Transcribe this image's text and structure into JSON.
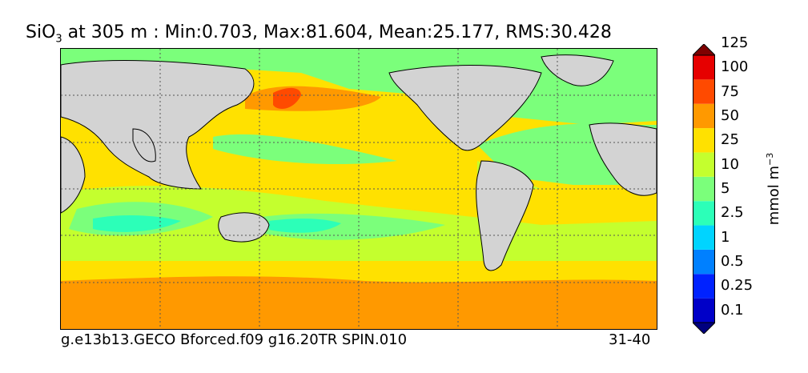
{
  "title": {
    "var_main": "SiO",
    "var_sub": "3",
    "rest": " at 305 m : Min:0.703, Max:81.604, Mean:25.177, RMS:30.428"
  },
  "footer": {
    "left": "g.e13b13.GECO Bforced.f09 g16.20TR SPIN.010",
    "right": "31-40"
  },
  "colorbar": {
    "unit_main": "mmol m",
    "unit_sup": "−3",
    "levels": [
      "0.1",
      "0.25",
      "0.5",
      "1",
      "2.5",
      "5",
      "10",
      "25",
      "50",
      "75",
      "100",
      "125"
    ],
    "colors": [
      "#00007f",
      "#0000c8",
      "#0022ff",
      "#0080ff",
      "#00d4ff",
      "#2cffb8",
      "#7bff7b",
      "#c4ff2e",
      "#ffe100",
      "#ff9900",
      "#ff4a00",
      "#e60000",
      "#7f0000"
    ]
  },
  "map": {
    "land_color": "#d3d3d3",
    "grid": true
  }
}
